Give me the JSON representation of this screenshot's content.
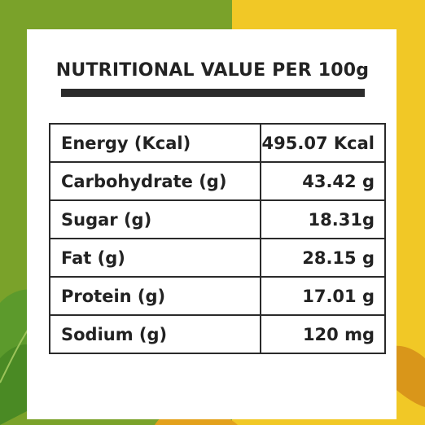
{
  "title": "NUTRITIONAL VALUE PER 100g",
  "rows": [
    {
      "label": "Energy (Kcal)",
      "value": "495.07 Kcal"
    },
    {
      "label": "Carbohydrate (g)",
      "value": "43.42 g"
    },
    {
      "label": "Sugar (g)",
      "value": "18.31g"
    },
    {
      "label": "Fat (g)",
      "value": "28.15 g"
    },
    {
      "label": "Protein (g)",
      "value": "17.01 g"
    },
    {
      "label": "Sodium (g)",
      "value": "120 mg"
    }
  ],
  "colors": {
    "background_left": "#7aa22a",
    "background_right": "#f1c826",
    "card": "#ffffff",
    "text": "#222222",
    "rule": "#2c2c2c"
  }
}
